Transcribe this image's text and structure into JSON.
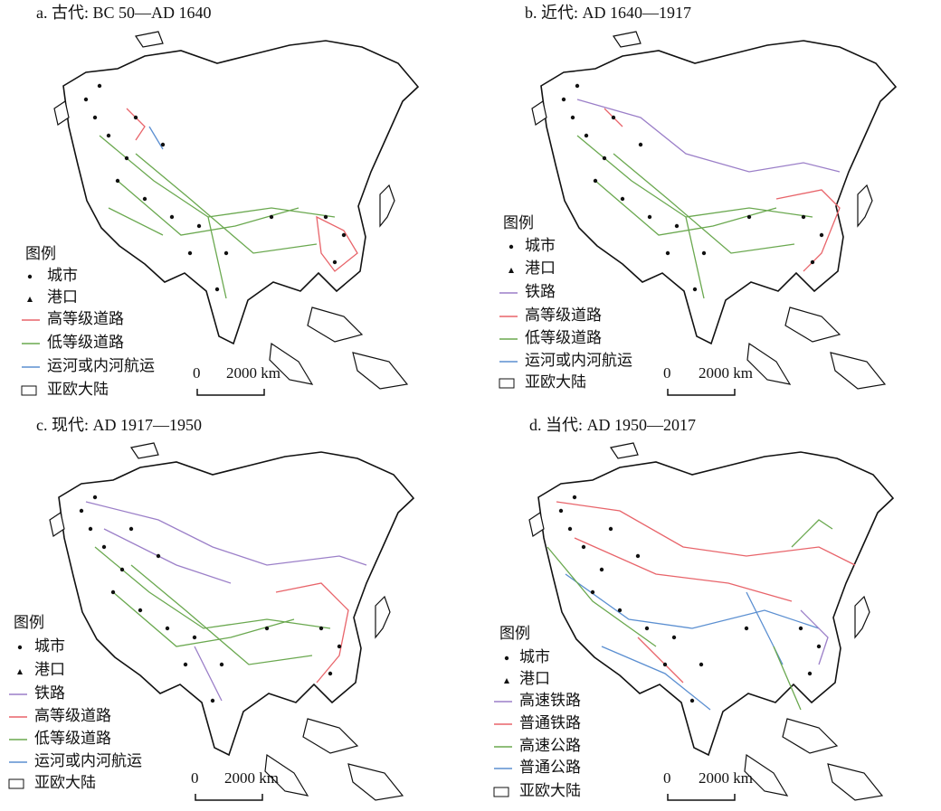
{
  "panels": [
    {
      "title": "a. 古代: BC 50—AD 1640",
      "legend_title": "图例",
      "legend_items": [
        "城市",
        "港口",
        "高等级道路",
        "低等级道路",
        "运河或内河航运",
        "亚欧大陆"
      ],
      "scale": [
        "0",
        "2000 km"
      ]
    },
    {
      "title": "b. 近代: AD 1640—1917",
      "legend_title": "图例",
      "legend_items": [
        "城市",
        "港口",
        "铁路",
        "高等级道路",
        "低等级道路",
        "运河或内河航运",
        "亚欧大陆"
      ],
      "scale": [
        "0",
        "2000 km"
      ]
    },
    {
      "title": "c. 现代: AD 1917—1950",
      "legend_title": "图例",
      "legend_items": [
        "城市",
        "港口",
        "铁路",
        "高等级道路",
        "低等级道路",
        "运河或内河航运",
        "亚欧大陆"
      ],
      "scale": [
        "0",
        "2000 km"
      ]
    },
    {
      "title": "d. 当代: AD 1950—2017",
      "legend_title": "图例",
      "legend_items": [
        "城市",
        "港口",
        "高速铁路",
        "普通铁路",
        "高速公路",
        "普通公路",
        "亚欧大陆"
      ],
      "scale": [
        "0",
        "2000 km"
      ]
    }
  ]
}
